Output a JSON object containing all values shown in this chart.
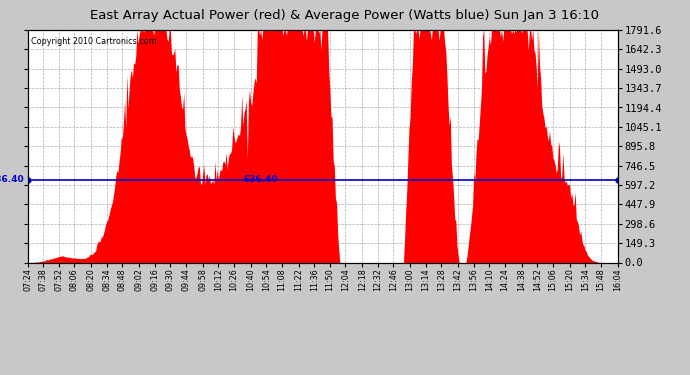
{
  "title": "East Array Actual Power (red) & Average Power (Watts blue) Sun Jan 3 16:10",
  "copyright": "Copyright 2010 Cartronics.com",
  "average_power": 636.4,
  "yticks": [
    0.0,
    149.3,
    298.6,
    447.9,
    597.2,
    746.5,
    895.8,
    1045.1,
    1194.4,
    1343.7,
    1493.0,
    1642.3,
    1791.6
  ],
  "ymax": 1791.6,
  "background_color": "#c8c8c8",
  "plot_bg_color": "#ffffff",
  "bar_color": "#ff0000",
  "avg_line_color": "#0000cd",
  "xtick_labels": [
    "07:24",
    "07:38",
    "07:52",
    "08:06",
    "08:20",
    "08:34",
    "08:48",
    "09:02",
    "09:16",
    "09:30",
    "09:44",
    "09:58",
    "10:12",
    "10:26",
    "10:40",
    "10:54",
    "11:08",
    "11:22",
    "11:36",
    "11:50",
    "12:04",
    "12:18",
    "12:32",
    "12:46",
    "13:00",
    "13:14",
    "13:28",
    "13:42",
    "13:56",
    "14:10",
    "14:24",
    "14:38",
    "14:52",
    "15:06",
    "15:20",
    "15:34",
    "15:48",
    "16:04"
  ],
  "num_points": 530
}
